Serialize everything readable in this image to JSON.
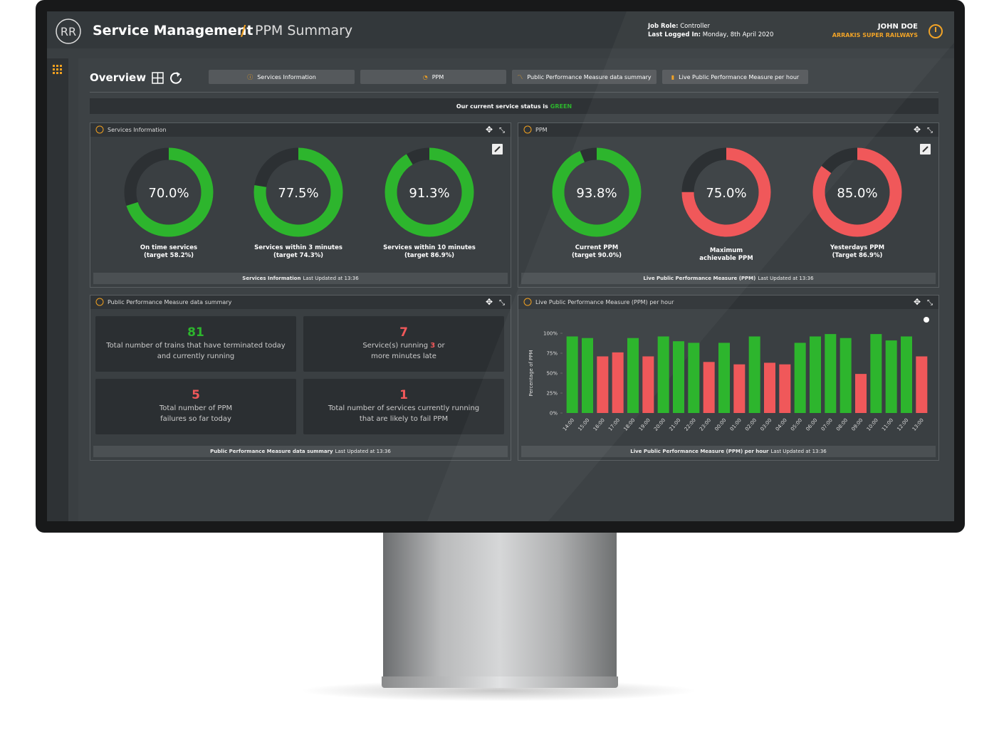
{
  "header": {
    "title": "Service Management",
    "separator": "/",
    "subtitle": "PPM Summary",
    "job_role_label": "Job Role:",
    "job_role": "Controller",
    "last_login_label": "Last Logged In:",
    "last_login": "Monday, 8th April 2020",
    "user": "JOHN DOE",
    "company": "ARRAKIS SUPER RAILWAYS"
  },
  "toolbar": {
    "title": "Overview",
    "tabs": [
      "Services Information",
      "PPM",
      "Public Performance Measure data summary",
      "Live Public Performance Measure per hour"
    ]
  },
  "status": {
    "text": "Our current service status is",
    "value": "GREEN"
  },
  "panels": [
    {
      "title": "Services Information",
      "footer_bold": "Services Information",
      "footer": "Last Updated at 13:36"
    },
    {
      "title": "PPM",
      "footer_bold": "Live Public Performance Measure (PPM)",
      "footer": "Last Updated at 13:36"
    },
    {
      "title": "Public Performance Measure data summary",
      "footer_bold": "Public Performance Measure data summary",
      "footer": "Last Updated at 13:36"
    },
    {
      "title": "Live Public Performance Measure (PPM) per hour",
      "footer_bold": "Live Public Performance Measure (PPM) per hour",
      "footer": "Last Updated at 13:36"
    }
  ],
  "summary": [
    {
      "value": 81,
      "text": "Total number of trains that have terminated today and currently running"
    },
    {
      "value": 7,
      "text_before": "Service(s) running",
      "highlight": 3,
      "text_after": "or more minutes late"
    },
    {
      "value": 5,
      "text": "Total number of PPM failures so far today"
    },
    {
      "value": 1,
      "text": "Total number of services currently running that are likely to fail PPM"
    }
  ],
  "chart_data": [
    {
      "type": "donut",
      "values": [
        70
      ],
      "value_labels": [
        "70.0%"
      ],
      "color": "#2db52d",
      "title": "On time services",
      "subtitle": "(target 58.2%)"
    },
    {
      "type": "donut",
      "values": [
        77.5
      ],
      "value_labels": [
        "77.5%"
      ],
      "color": "#2db52d",
      "title": "Services within 3 minutes",
      "subtitle": "(target 74.3%)"
    },
    {
      "type": "donut",
      "values": [
        91.3
      ],
      "value_labels": [
        "91.3%"
      ],
      "color": "#2db52d",
      "title": "Services within 10 minutes",
      "subtitle": "(target 86.9%)"
    },
    {
      "type": "donut",
      "values": [
        93.8
      ],
      "value_labels": [
        "93.8%"
      ],
      "color": "#2db52d",
      "title": "Current PPM",
      "subtitle": "(target 90.0%)"
    },
    {
      "type": "donut",
      "values": [
        75
      ],
      "value_labels": [
        "75.0%"
      ],
      "color": "#f0585a",
      "title": "Maximum achievable PPM"
    },
    {
      "type": "donut",
      "values": [
        85
      ],
      "value_labels": [
        "85.0%"
      ],
      "color": "#f0585a",
      "title": "Yesterdays PPM",
      "subtitle": "(Target 86.9%)"
    },
    {
      "type": "bar",
      "ylabel": "Percentage of PPM",
      "categories": [
        "14:00",
        "15:00",
        "16:00",
        "17:00",
        "18:00",
        "19:00",
        "20:00",
        "21:00",
        "22:00",
        "23:00",
        "00:00",
        "01:00",
        "02:00",
        "03:00",
        "04:00",
        "05:00",
        "06:00",
        "07:00",
        "08:00",
        "09:00",
        "10:00",
        "11:00",
        "12:00",
        "13:00"
      ],
      "values": [
        96,
        94,
        71,
        76,
        94,
        71,
        96,
        90,
        88,
        64,
        88,
        61,
        96,
        63,
        61,
        88,
        96,
        99,
        94,
        49,
        99,
        91,
        96,
        71
      ],
      "colors": [
        "#2db52d",
        "#2db52d",
        "#f0585a",
        "#f0585a",
        "#2db52d",
        "#f0585a",
        "#2db52d",
        "#2db52d",
        "#2db52d",
        "#f0585a",
        "#2db52d",
        "#f0585a",
        "#2db52d",
        "#f0585a",
        "#f0585a",
        "#2db52d",
        "#2db52d",
        "#2db52d",
        "#2db52d",
        "#f0585a",
        "#2db52d",
        "#2db52d",
        "#2db52d",
        "#f0585a"
      ],
      "ylim": [
        0,
        100
      ],
      "yticks": [
        {
          "value": 0,
          "label": "0%"
        },
        {
          "value": 25,
          "label": "25%"
        },
        {
          "value": 50,
          "label": "50%"
        },
        {
          "value": 75,
          "label": "75%"
        },
        {
          "value": 100,
          "label": "100%"
        }
      ],
      "grid": false
    }
  ]
}
